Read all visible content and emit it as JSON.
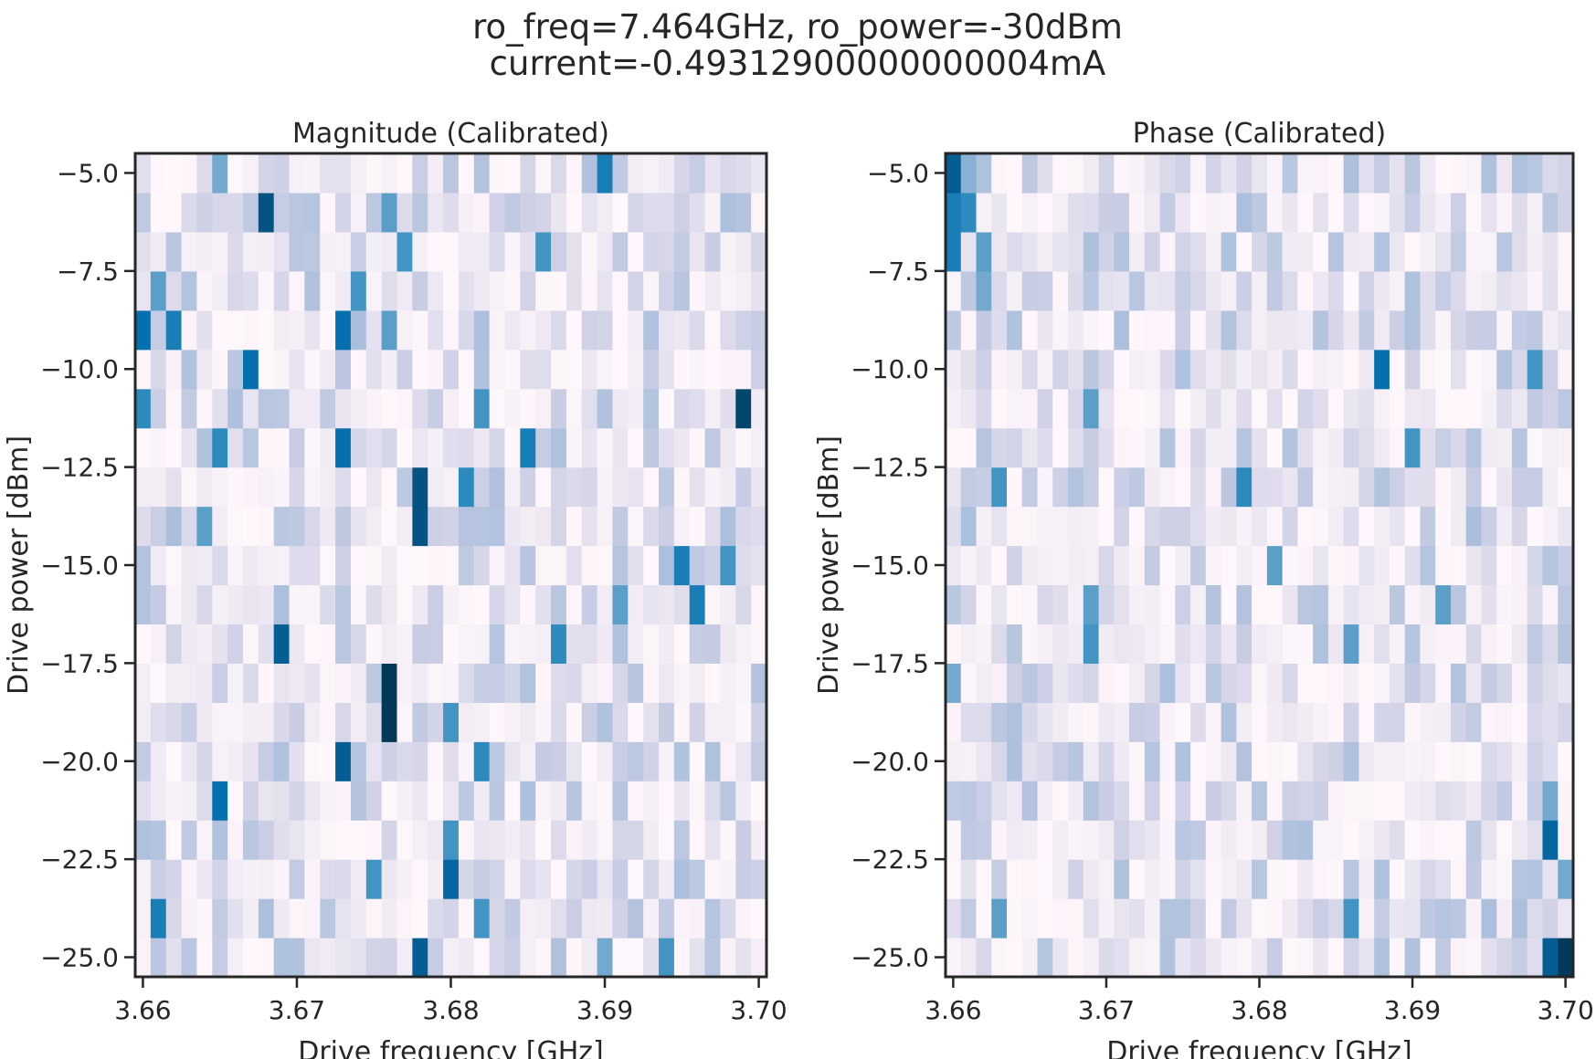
{
  "figure": {
    "title_line1": "ro_freq=7.464GHz, ro_power=-30dBm",
    "title_line2": "current=-0.49312900000000004mA"
  },
  "colormap": [
    "#fff7fb",
    "#ece7f2",
    "#d0d1e6",
    "#a6bddb",
    "#74a9cf",
    "#3690c0",
    "#0570b0",
    "#045a8d",
    "#023858"
  ],
  "chart_data": [
    {
      "type": "heatmap",
      "title": "Magnitude (Calibrated)",
      "xlabel": "Drive frequency [GHz]",
      "ylabel": "Drive power [dBm]",
      "xlim": [
        3.6595,
        3.7005
      ],
      "ylim": [
        -25.5,
        -4.5
      ],
      "x_start": 3.66,
      "x_step": 0.001,
      "nx": 41,
      "y_start": -25.0,
      "y_step": 1.0,
      "ny": 21,
      "xticks": [
        3.66,
        3.67,
        3.68,
        3.69,
        3.7
      ],
      "xtick_labels": [
        "3.66",
        "3.67",
        "3.68",
        "3.69",
        "3.70"
      ],
      "yticks": [
        -25.0,
        -22.5,
        -20.0,
        -17.5,
        -15.0,
        -12.5,
        -10.0,
        -7.5,
        -5.0
      ],
      "ytick_labels": [
        "−25.0",
        "−22.5",
        "−20.0",
        "−17.5",
        "−15.0",
        "−12.5",
        "−10.0",
        "−7.5",
        "−5.0"
      ],
      "grid": false,
      "seed": 7,
      "hotspots": [
        [
          3.665,
          -5,
          0.5
        ],
        [
          3.69,
          -5,
          0.7
        ],
        [
          3.668,
          -6,
          0.9
        ],
        [
          3.676,
          -6,
          0.55
        ],
        [
          3.677,
          -7,
          0.6
        ],
        [
          3.686,
          -7,
          0.6
        ],
        [
          3.661,
          -8,
          0.55
        ],
        [
          3.674,
          -8,
          0.6
        ],
        [
          3.66,
          -9,
          0.75
        ],
        [
          3.662,
          -9,
          0.7
        ],
        [
          3.673,
          -9,
          0.75
        ],
        [
          3.676,
          -9,
          0.55
        ],
        [
          3.667,
          -10,
          0.75
        ],
        [
          3.699,
          -11,
          0.95
        ],
        [
          3.66,
          -11,
          0.65
        ],
        [
          3.682,
          -11,
          0.6
        ],
        [
          3.665,
          -12,
          0.65
        ],
        [
          3.673,
          -12,
          0.75
        ],
        [
          3.685,
          -12,
          0.7
        ],
        [
          3.678,
          -13,
          0.9
        ],
        [
          3.681,
          -13,
          0.65
        ],
        [
          3.678,
          -14,
          0.9
        ],
        [
          3.664,
          -14,
          0.55
        ],
        [
          3.695,
          -15,
          0.7
        ],
        [
          3.698,
          -15,
          0.6
        ],
        [
          3.696,
          -16,
          0.7
        ],
        [
          3.691,
          -16,
          0.55
        ],
        [
          3.669,
          -17,
          0.85
        ],
        [
          3.687,
          -17,
          0.65
        ],
        [
          3.676,
          -18,
          1.0
        ],
        [
          3.676,
          -19,
          1.0
        ],
        [
          3.68,
          -19,
          0.6
        ],
        [
          3.673,
          -20,
          0.85
        ],
        [
          3.682,
          -20,
          0.65
        ],
        [
          3.665,
          -21,
          0.75
        ],
        [
          3.68,
          -22,
          0.6
        ],
        [
          3.68,
          -23,
          0.8
        ],
        [
          3.675,
          -23,
          0.6
        ],
        [
          3.661,
          -24,
          0.7
        ],
        [
          3.682,
          -24,
          0.6
        ],
        [
          3.678,
          -25,
          0.85
        ],
        [
          3.694,
          -25,
          0.6
        ],
        [
          3.69,
          -25,
          0.5
        ]
      ]
    },
    {
      "type": "heatmap",
      "title": "Phase (Calibrated)",
      "xlabel": "Drive frequency [GHz]",
      "ylabel": "Drive power [dBm]",
      "xlim": [
        3.6595,
        3.7005
      ],
      "ylim": [
        -25.5,
        -4.5
      ],
      "x_start": 3.66,
      "x_step": 0.001,
      "nx": 41,
      "y_start": -25.0,
      "y_step": 1.0,
      "ny": 21,
      "xticks": [
        3.66,
        3.67,
        3.68,
        3.69,
        3.7
      ],
      "xtick_labels": [
        "3.66",
        "3.67",
        "3.68",
        "3.69",
        "3.70"
      ],
      "yticks": [
        -25.0,
        -22.5,
        -20.0,
        -17.5,
        -15.0,
        -12.5,
        -10.0,
        -7.5,
        -5.0
      ],
      "ytick_labels": [
        "−25.0",
        "−22.5",
        "−20.0",
        "−17.5",
        "−15.0",
        "−12.5",
        "−10.0",
        "−7.5",
        "−5.0"
      ],
      "grid": false,
      "seed": 13,
      "hotspots": [
        [
          3.66,
          -5,
          0.85
        ],
        [
          3.661,
          -5,
          0.45
        ],
        [
          3.66,
          -6,
          0.7
        ],
        [
          3.661,
          -6,
          0.65
        ],
        [
          3.66,
          -7,
          0.7
        ],
        [
          3.662,
          -7,
          0.55
        ],
        [
          3.662,
          -8,
          0.5
        ],
        [
          3.688,
          -10,
          0.75
        ],
        [
          3.698,
          -10,
          0.6
        ],
        [
          3.669,
          -11,
          0.55
        ],
        [
          3.69,
          -12,
          0.6
        ],
        [
          3.663,
          -13,
          0.6
        ],
        [
          3.679,
          -13,
          0.65
        ],
        [
          3.681,
          -15,
          0.55
        ],
        [
          3.669,
          -16,
          0.55
        ],
        [
          3.692,
          -16,
          0.55
        ],
        [
          3.669,
          -17,
          0.6
        ],
        [
          3.686,
          -17,
          0.55
        ],
        [
          3.66,
          -18,
          0.5
        ],
        [
          3.699,
          -21,
          0.5
        ],
        [
          3.699,
          -22,
          0.8
        ],
        [
          3.7,
          -23,
          0.5
        ],
        [
          3.686,
          -24,
          0.6
        ],
        [
          3.663,
          -24,
          0.55
        ],
        [
          3.699,
          -25,
          0.85
        ],
        [
          3.7,
          -25,
          1.0
        ]
      ]
    }
  ]
}
